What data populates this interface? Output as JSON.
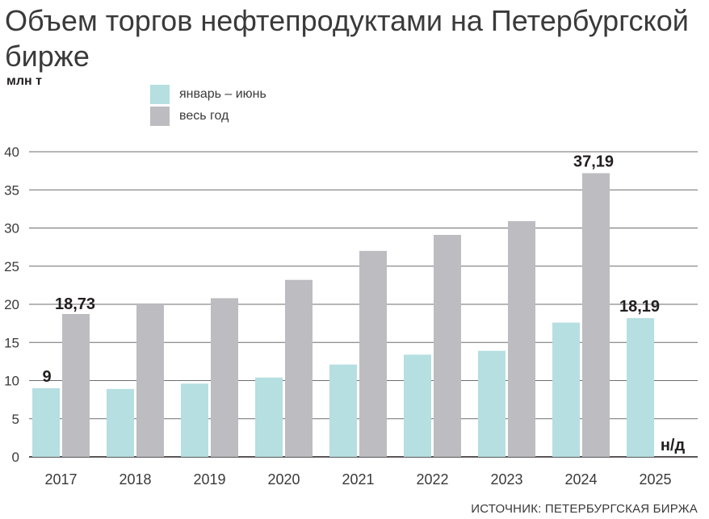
{
  "header": {
    "title": "Объем торгов нефтепродуктами на Петербургской бирже",
    "unit": "млн т"
  },
  "footer": {
    "source": "ИСТОЧНИК: ПЕТЕРБУРГСКАЯ БИРЖА"
  },
  "colors": {
    "jan_jun": "#b5dfe1",
    "full_year": "#bcbcc1",
    "grid": "#6d6e71",
    "text": "#231f20"
  },
  "chart_data": {
    "type": "bar",
    "title": "Объем торгов нефтепродуктами на Петербургской бирже",
    "ylabel": "млн т",
    "xlabel": "",
    "ylim": [
      0,
      40
    ],
    "yticks": [
      0,
      5,
      10,
      15,
      20,
      25,
      30,
      35,
      40
    ],
    "grid": true,
    "legend_position": "top-left",
    "categories": [
      "2017",
      "2018",
      "2019",
      "2020",
      "2021",
      "2022",
      "2023",
      "2024",
      "2025"
    ],
    "series": [
      {
        "name": "январь – июнь",
        "color": "#b5dfe1",
        "values": [
          9,
          8.9,
          9.6,
          10.4,
          12.1,
          13.4,
          13.9,
          17.6,
          18.19
        ]
      },
      {
        "name": "весь год",
        "color": "#bcbcc1",
        "values": [
          18.73,
          20.0,
          20.8,
          23.2,
          27.0,
          29.1,
          30.9,
          37.19,
          null
        ]
      }
    ],
    "annotations": [
      {
        "text": "9",
        "category": "2017",
        "series": 0
      },
      {
        "text": "18,73",
        "category": "2017",
        "series": 1
      },
      {
        "text": "37,19",
        "category": "2024",
        "series": 1
      },
      {
        "text": "18,19",
        "category": "2025",
        "series": 0
      },
      {
        "text": "н/д",
        "category": "2025",
        "series": 1
      }
    ]
  }
}
